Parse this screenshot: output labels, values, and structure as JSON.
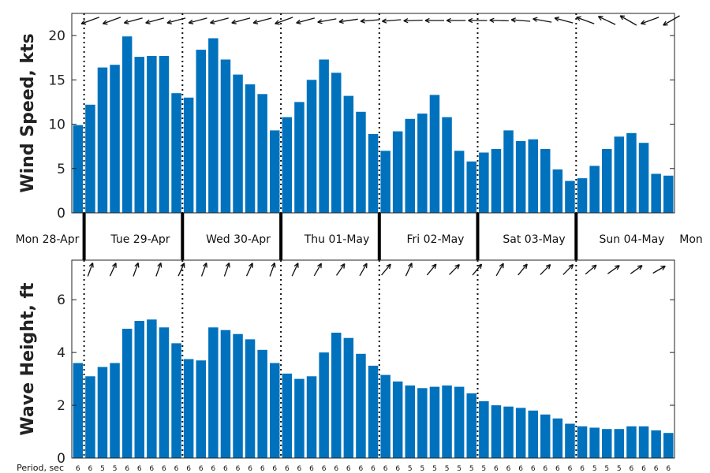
{
  "chart_data": [
    {
      "type": "bar",
      "ylabel": "Wind Speed, kts",
      "ylim": [
        0,
        22.5
      ],
      "yticks": [
        0,
        5,
        10,
        15,
        20
      ],
      "color": "#0072bd",
      "values": [
        9.9,
        12.2,
        16.4,
        16.7,
        19.9,
        17.6,
        17.7,
        17.7,
        13.5,
        13.0,
        18.4,
        19.7,
        17.3,
        15.6,
        14.5,
        13.4,
        9.3,
        10.8,
        12.5,
        15.0,
        17.3,
        15.8,
        13.2,
        11.4,
        8.9,
        7.0,
        9.2,
        10.6,
        11.2,
        13.3,
        10.8,
        7.0,
        5.8,
        6.8,
        7.2,
        9.3,
        8.1,
        8.3,
        7.2,
        4.9,
        3.6,
        3.9,
        5.3,
        7.2,
        8.6,
        9.0,
        7.9,
        4.4,
        4.2
      ],
      "direction_arrows_deg": [
        250,
        250,
        255,
        255,
        255,
        255,
        255,
        255,
        255,
        250,
        255,
        260,
        262,
        265,
        265,
        268,
        270,
        270,
        270,
        272,
        275,
        280,
        285,
        290,
        295,
        300,
        250,
        240
      ]
    },
    {
      "type": "bar",
      "ylabel": "Wave Height, ft",
      "ylim": [
        0,
        7.5
      ],
      "yticks": [
        0,
        2,
        4,
        6
      ],
      "color": "#0072bd",
      "values": [
        3.6,
        3.1,
        3.45,
        3.6,
        4.9,
        5.2,
        5.25,
        4.95,
        4.35,
        3.75,
        3.7,
        4.95,
        4.85,
        4.7,
        4.5,
        4.1,
        3.6,
        3.2,
        3.0,
        3.1,
        4.0,
        4.75,
        4.55,
        3.95,
        3.5,
        3.15,
        2.9,
        2.75,
        2.65,
        2.7,
        2.75,
        2.7,
        2.45,
        2.15,
        2.0,
        1.95,
        1.9,
        1.8,
        1.65,
        1.5,
        1.3,
        1.2,
        1.15,
        1.1,
        1.1,
        1.2,
        1.2,
        1.05,
        0.95
      ],
      "direction_arrows_deg": [
        20,
        25,
        20,
        20,
        25,
        20,
        20,
        25,
        20,
        25,
        30,
        35,
        30,
        40,
        25,
        40,
        45,
        40,
        30,
        40,
        45,
        45,
        50,
        55,
        55,
        60
      ]
    }
  ],
  "day_labels": [
    "Mon 28-Apr",
    "Tue 29-Apr",
    "Wed 30-Apr",
    "Thu 01-May",
    "Fri 02-May",
    "Sat 03-May",
    "Sun 04-May",
    "Mon"
  ],
  "period_label": "Period, sec",
  "periods": [
    6,
    6,
    5,
    5,
    6,
    6,
    6,
    6,
    6,
    6,
    6,
    6,
    6,
    6,
    6,
    6,
    6,
    6,
    6,
    6,
    6,
    6,
    6,
    6,
    6,
    6,
    6,
    5,
    5,
    5,
    5,
    5,
    5,
    5,
    6,
    6,
    6,
    6,
    6,
    6,
    6,
    6,
    5,
    5,
    5,
    6,
    6,
    6,
    6
  ]
}
